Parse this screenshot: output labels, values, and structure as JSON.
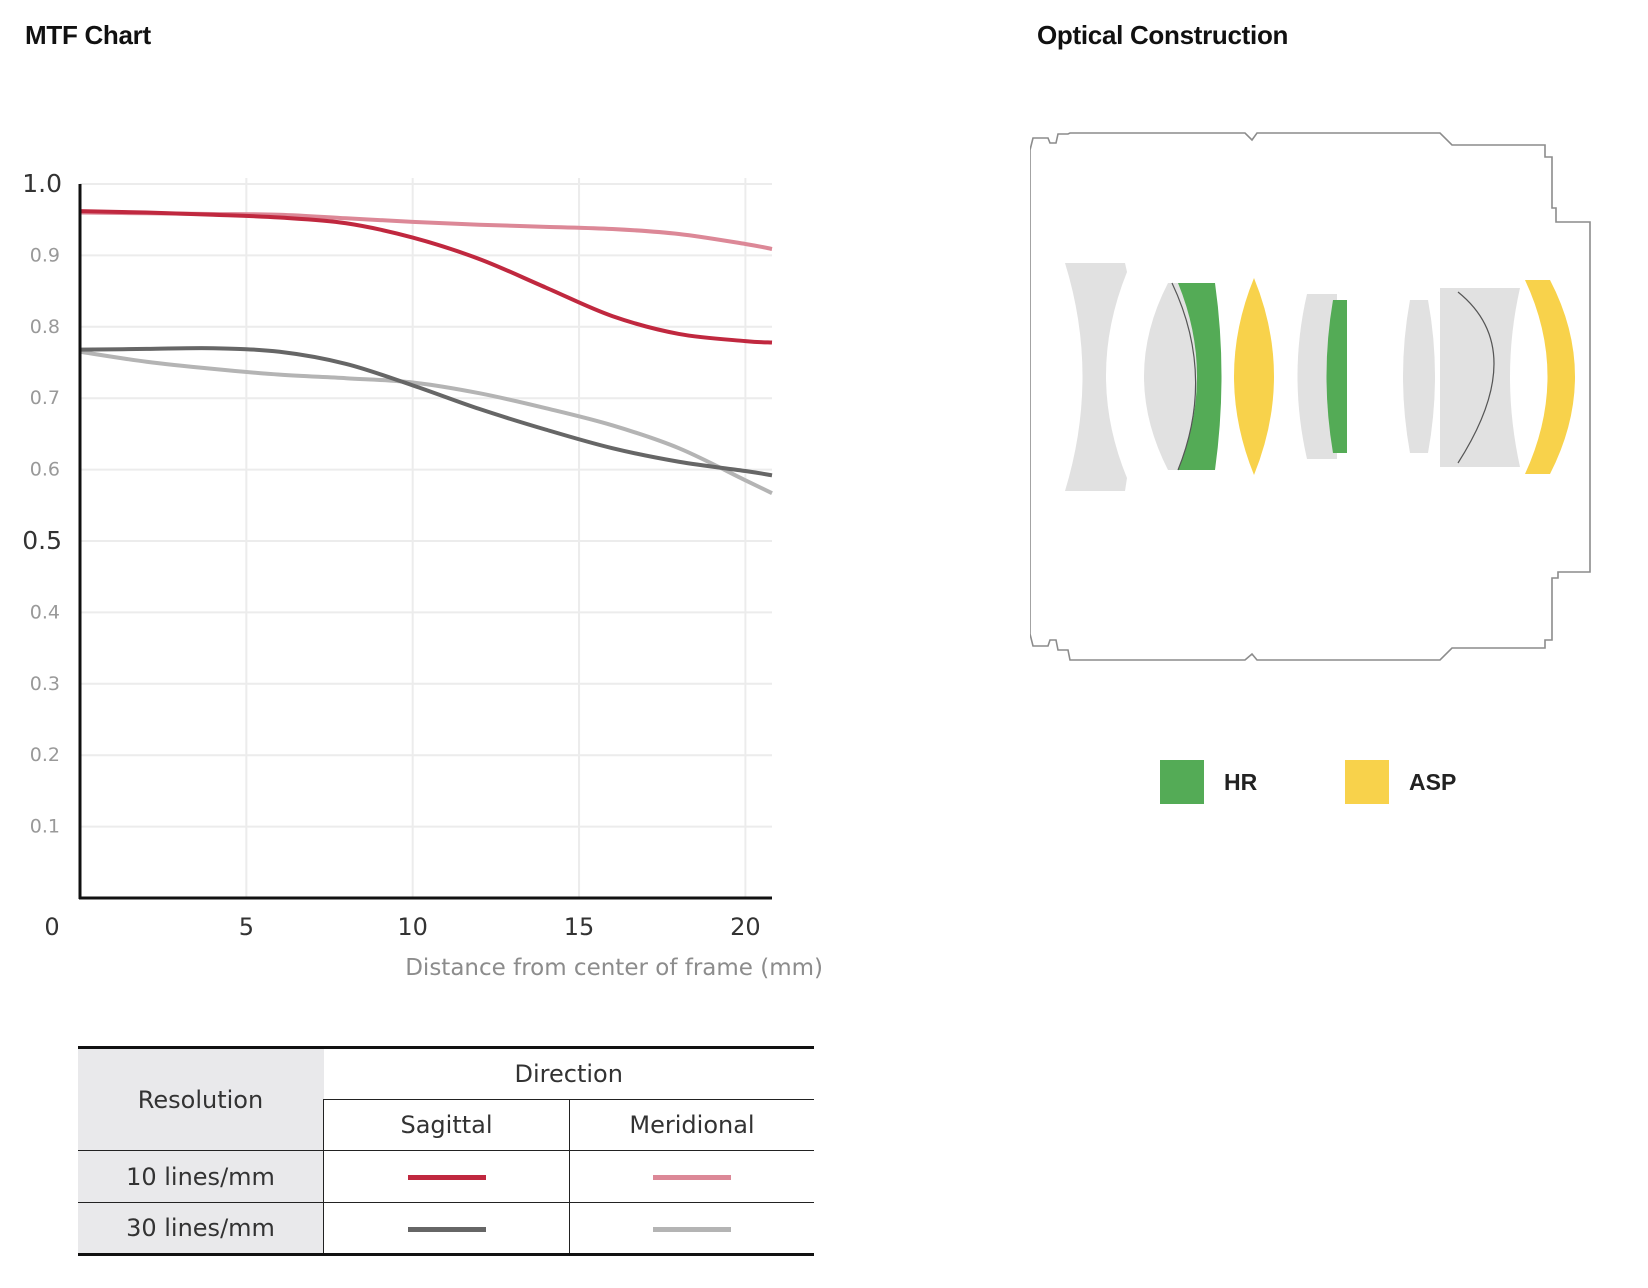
{
  "mtf_title": "MTF Chart",
  "optical_title": "Optical Construction",
  "chart_data": {
    "type": "line",
    "xlabel": "Distance from center of frame (mm)",
    "ylabel": "",
    "xlim": [
      0,
      20.8
    ],
    "ylim": [
      0,
      1.0
    ],
    "x_ticks": [
      "0",
      "5",
      "10",
      "15",
      "20"
    ],
    "y_ticks": [
      "0.1",
      "0.2",
      "0.3",
      "0.4",
      "0.5",
      "0.6",
      "0.7",
      "0.8",
      "0.9",
      "1.0"
    ],
    "grid": true,
    "series": [
      {
        "color": "#c0283f",
        "x": [
          0,
          2,
          4,
          6,
          8,
          10,
          12,
          14,
          16,
          18,
          20,
          20.8
        ],
        "y": [
          0.962,
          0.96,
          0.957,
          0.953,
          0.945,
          0.925,
          0.895,
          0.855,
          0.815,
          0.79,
          0.78,
          0.778
        ]
      },
      {
        "color": "#dc8897",
        "x": [
          0,
          2,
          4,
          6,
          8,
          10,
          12,
          14,
          16,
          18,
          20,
          20.8
        ],
        "y": [
          0.96,
          0.959,
          0.958,
          0.957,
          0.952,
          0.947,
          0.943,
          0.94,
          0.937,
          0.93,
          0.916,
          0.909
        ]
      },
      {
        "color": "#666666",
        "x": [
          0,
          2,
          4,
          6,
          8,
          10,
          12,
          14,
          16,
          18,
          20,
          20.8
        ],
        "y": [
          0.768,
          0.769,
          0.77,
          0.765,
          0.748,
          0.718,
          0.685,
          0.656,
          0.63,
          0.611,
          0.598,
          0.592
        ]
      },
      {
        "color": "#b4b4b4",
        "x": [
          0,
          2,
          4,
          6,
          8,
          10,
          12,
          14,
          16,
          18,
          20,
          20.8
        ],
        "y": [
          0.765,
          0.751,
          0.741,
          0.733,
          0.728,
          0.722,
          0.707,
          0.686,
          0.662,
          0.63,
          0.585,
          0.567
        ]
      }
    ]
  },
  "legend_table": {
    "resolution_header": "Resolution",
    "direction_header": "Direction",
    "sagittal": "Sagittal",
    "meridional": "Meridional",
    "rows": [
      {
        "label": "10 lines/mm",
        "sagittal_color": "#c0283f",
        "meridional_color": "#dc8897"
      },
      {
        "label": "30 lines/mm",
        "sagittal_color": "#666666",
        "meridional_color": "#b4b4b4"
      }
    ]
  },
  "optical_legend": {
    "hr_label": "HR",
    "hr_color": "#54ab56",
    "asp_label": "ASP",
    "asp_color": "#f8d24b"
  }
}
